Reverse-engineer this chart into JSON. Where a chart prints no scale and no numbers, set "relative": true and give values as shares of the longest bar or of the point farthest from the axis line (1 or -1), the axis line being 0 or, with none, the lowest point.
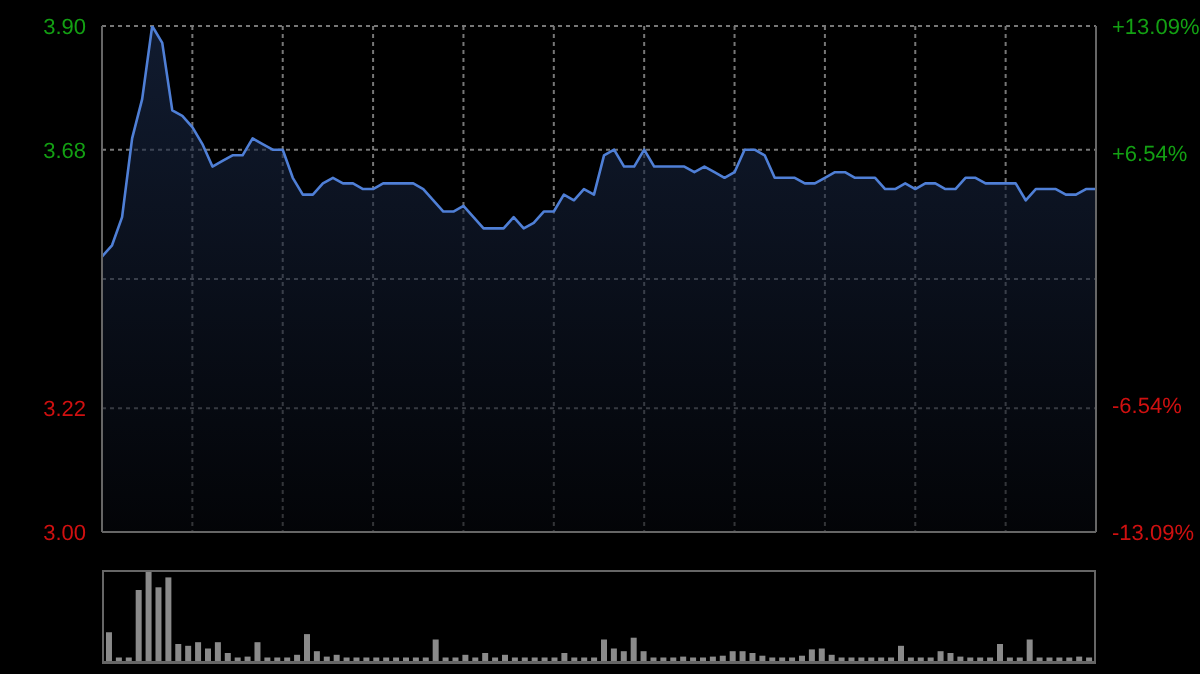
{
  "chart_data": [
    {
      "type": "area",
      "categories": [
        null,
        null,
        null,
        null,
        null,
        null,
        null,
        null,
        null,
        null,
        null,
        null,
        null,
        null,
        null,
        null,
        null,
        null,
        null,
        null,
        null,
        null,
        null,
        null,
        null,
        null,
        null,
        null,
        null,
        null,
        null,
        null,
        null,
        null,
        null,
        null,
        null,
        null,
        null,
        null,
        null,
        null,
        null,
        null,
        null,
        null,
        null,
        null,
        null,
        null,
        null,
        null,
        null,
        null,
        null,
        null,
        null,
        null,
        null,
        null,
        null,
        null,
        null,
        null,
        null,
        null,
        null,
        null,
        null,
        null,
        null,
        null,
        null,
        null,
        null,
        null,
        null,
        null,
        null,
        null,
        null,
        null,
        null,
        null,
        null,
        null,
        null,
        null,
        null,
        null,
        null,
        null,
        null,
        null,
        null,
        null,
        null,
        null,
        null,
        null
      ],
      "series": [
        {
          "color": "#4f7fd6",
          "values": [
            3.49,
            3.51,
            3.56,
            3.7,
            3.77,
            3.9,
            3.87,
            3.75,
            3.74,
            3.72,
            3.69,
            3.65,
            3.66,
            3.67,
            3.67,
            3.7,
            3.69,
            3.68,
            3.68,
            3.63,
            3.6,
            3.6,
            3.62,
            3.63,
            3.62,
            3.62,
            3.61,
            3.61,
            3.62,
            3.62,
            3.62,
            3.62,
            3.61,
            3.59,
            3.57,
            3.57,
            3.58,
            3.56,
            3.54,
            3.54,
            3.54,
            3.56,
            3.54,
            3.55,
            3.57,
            3.57,
            3.6,
            3.59,
            3.61,
            3.6,
            3.67,
            3.68,
            3.65,
            3.65,
            3.68,
            3.65,
            3.65,
            3.65,
            3.65,
            3.64,
            3.65,
            3.64,
            3.63,
            3.64,
            3.68,
            3.68,
            3.67,
            3.63,
            3.63,
            3.63,
            3.62,
            3.62,
            3.63,
            3.64,
            3.64,
            3.63,
            3.63,
            3.63,
            3.61,
            3.61,
            3.62,
            3.61,
            3.62,
            3.62,
            3.61,
            3.61,
            3.63,
            3.63,
            3.62,
            3.62,
            3.62,
            3.62,
            3.59,
            3.61,
            3.61,
            3.61,
            3.6,
            3.6,
            3.61,
            3.61
          ]
        }
      ],
      "ylim": [
        3.0,
        3.9
      ],
      "yticks": [
        {
          "value": 3.0,
          "label": "3.00"
        },
        3.22,
        {
          "value": 3.45,
          "label": null
        },
        3.68,
        {
          "value": 3.9,
          "label": "3.90"
        }
      ],
      "y2lim": [
        -13.09,
        13.09
      ],
      "y2ticks": [
        {
          "value": -13.09,
          "label": "-13.09%"
        },
        {
          "value": -6.54,
          "label": "-6.54%"
        },
        {
          "value": 6.54,
          "label": "+6.54%"
        },
        {
          "value": 13.09,
          "label": "+13.09%"
        }
      ],
      "grid": true,
      "legend": false
    },
    {
      "type": "bar",
      "relative": true,
      "categories": [
        null,
        null,
        null,
        null,
        null,
        null,
        null,
        null,
        null,
        null,
        null,
        null,
        null,
        null,
        null,
        null,
        null,
        null,
        null,
        null,
        null,
        null,
        null,
        null,
        null,
        null,
        null,
        null,
        null,
        null,
        null,
        null,
        null,
        null,
        null,
        null,
        null,
        null,
        null,
        null,
        null,
        null,
        null,
        null,
        null,
        null,
        null,
        null,
        null,
        null,
        null,
        null,
        null,
        null,
        null,
        null,
        null,
        null,
        null,
        null,
        null,
        null,
        null,
        null,
        null,
        null,
        null,
        null,
        null,
        null,
        null,
        null,
        null,
        null,
        null,
        null,
        null,
        null,
        null,
        null,
        null,
        null,
        null,
        null,
        null,
        null,
        null,
        null,
        null,
        null,
        null,
        null,
        null,
        null,
        null,
        null,
        null,
        null,
        null,
        null
      ],
      "series": [
        {
          "color": "#8a8a8a",
          "values": [
            0.33,
            0.05,
            0.05,
            0.8,
            1.0,
            0.83,
            0.94,
            0.2,
            0.18,
            0.22,
            0.15,
            0.22,
            0.1,
            0.05,
            0.06,
            0.22,
            0.05,
            0.05,
            0.05,
            0.08,
            0.31,
            0.12,
            0.06,
            0.08,
            0.05,
            0.05,
            0.05,
            0.05,
            0.05,
            0.05,
            0.05,
            0.05,
            0.05,
            0.25,
            0.05,
            0.05,
            0.08,
            0.05,
            0.1,
            0.05,
            0.08,
            0.05,
            0.05,
            0.05,
            0.05,
            0.05,
            0.1,
            0.05,
            0.05,
            0.05,
            0.25,
            0.15,
            0.12,
            0.27,
            0.12,
            0.05,
            0.05,
            0.05,
            0.06,
            0.05,
            0.05,
            0.06,
            0.07,
            0.12,
            0.12,
            0.1,
            0.07,
            0.05,
            0.05,
            0.05,
            0.07,
            0.14,
            0.15,
            0.08,
            0.05,
            0.05,
            0.05,
            0.05,
            0.05,
            0.05,
            0.18,
            0.05,
            0.05,
            0.05,
            0.12,
            0.1,
            0.06,
            0.05,
            0.05,
            0.05,
            0.2,
            0.05,
            0.05,
            0.25,
            0.05,
            0.05,
            0.05,
            0.05,
            0.06,
            0.05
          ]
        }
      ],
      "legend": false
    }
  ]
}
